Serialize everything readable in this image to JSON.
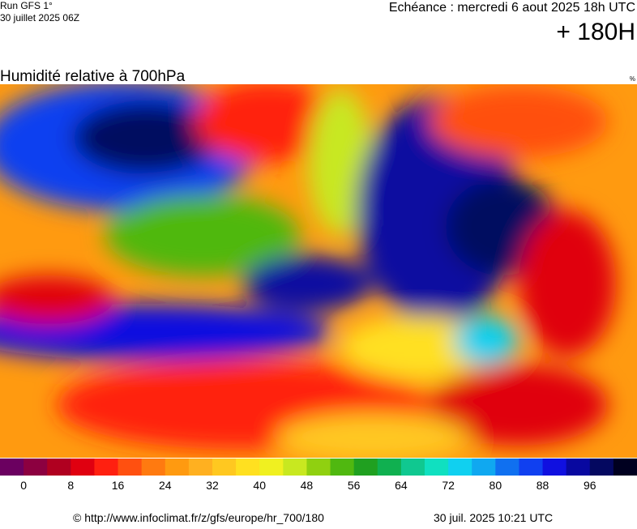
{
  "header": {
    "run": "Run GFS 1°",
    "run_date": "30 juillet 2025 06Z",
    "valid": "Echéance : mercredi 6 aout 2025 18h UTC",
    "lead": "+ 180H"
  },
  "map": {
    "title": "Humidité relative à 700hPa",
    "unit": "%"
  },
  "colorbar": {
    "colors": [
      "#6b0060",
      "#8c0040",
      "#b00020",
      "#e00010",
      "#ff2010",
      "#ff5010",
      "#ff7a10",
      "#ff9a10",
      "#ffb020",
      "#ffc820",
      "#ffe020",
      "#f0f020",
      "#c8e820",
      "#90d010",
      "#50b810",
      "#20a020",
      "#10b050",
      "#10c890",
      "#10e0c0",
      "#10d0f0",
      "#10a8f0",
      "#1070f0",
      "#1040f0",
      "#1010e0",
      "#0808a0",
      "#040860",
      "#000020"
    ],
    "ticks": [
      0,
      8,
      16,
      24,
      32,
      40,
      48,
      56,
      64,
      72,
      80,
      88,
      96
    ]
  },
  "footer": {
    "source": "© http://www.infoclimat.fr/z/gfs/europe/hr_700/180",
    "generated": "30 juil. 2025 10:21 UTC"
  }
}
